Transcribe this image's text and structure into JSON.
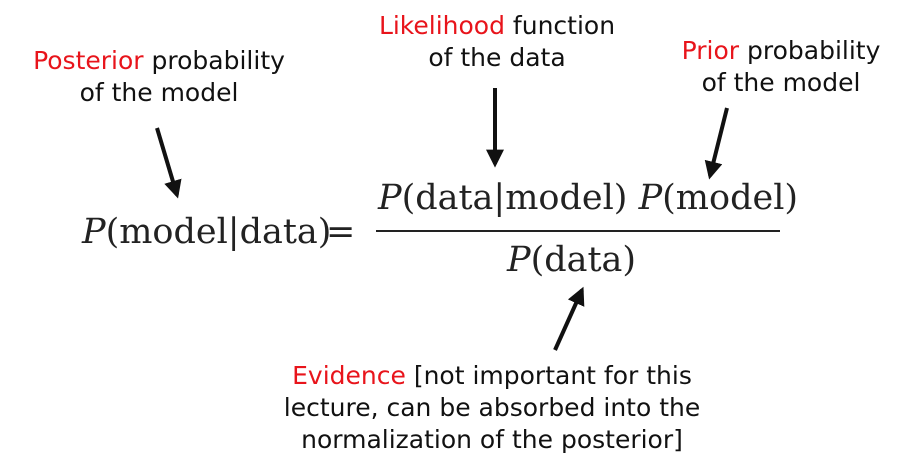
{
  "posterior": {
    "keyword": "Posterior",
    "rest": " probability",
    "line2": "of the model"
  },
  "likelihood": {
    "keyword": "Likelihood",
    "rest": " function",
    "line2": "of the data"
  },
  "prior": {
    "keyword": "Prior",
    "rest": " probability",
    "line2": "of the model"
  },
  "evidence": {
    "keyword": "Evidence",
    "rest": " [not important for this",
    "line2": "lecture, can be absorbed into the",
    "line3": "normalization of the posterior]"
  },
  "equation": {
    "symbol": "P",
    "lhs_args": "(model|data)",
    "equals": "=",
    "numerator_args_1": "(data|model)",
    "numerator_args_2": "(model)",
    "denominator_args": "(data)"
  },
  "colors": {
    "highlight": "#e8141b",
    "text": "#111111"
  }
}
